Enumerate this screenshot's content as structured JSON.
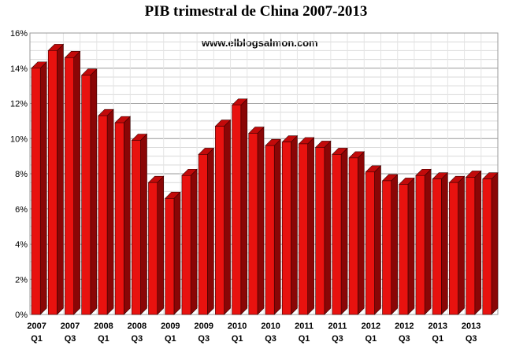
{
  "chart_data": {
    "type": "bar",
    "title": "PIB trimestral de China 2007-2013",
    "annotation": "www.elblogsalmon.com",
    "xlabel": "",
    "ylabel": "",
    "ylim": [
      0,
      16
    ],
    "yticks": [
      "0%",
      "2%",
      "4%",
      "6%",
      "8%",
      "10%",
      "12%",
      "14%",
      "16%"
    ],
    "grid": true,
    "legend": "none",
    "bar_color": "#e8120f",
    "bar_side_color": "#8a0606",
    "categories": [
      "2007 Q1",
      "2007 Q2",
      "2007 Q3",
      "2007 Q4",
      "2008 Q1",
      "2008 Q2",
      "2008 Q3",
      "2008 Q4",
      "2009 Q1",
      "2009 Q2",
      "2009 Q3",
      "2009 Q4",
      "2010 Q1",
      "2010 Q2",
      "2010 Q3",
      "2010 Q4",
      "2011 Q1",
      "2011 Q2",
      "2011 Q3",
      "2011 Q4",
      "2012 Q1",
      "2012 Q2",
      "2012 Q3",
      "2012 Q4",
      "2013 Q1",
      "2013 Q2",
      "2013 Q3",
      "2013 Q4"
    ],
    "x_tick_labels": [
      {
        "year": "2007",
        "quarter": "Q1",
        "index": 0
      },
      {
        "year": "2007",
        "quarter": "Q3",
        "index": 2
      },
      {
        "year": "2008",
        "quarter": "Q1",
        "index": 4
      },
      {
        "year": "2008",
        "quarter": "Q3",
        "index": 6
      },
      {
        "year": "2009",
        "quarter": "Q1",
        "index": 8
      },
      {
        "year": "2009",
        "quarter": "Q3",
        "index": 10
      },
      {
        "year": "2010",
        "quarter": "Q1",
        "index": 12
      },
      {
        "year": "2010",
        "quarter": "Q3",
        "index": 14
      },
      {
        "year": "2011",
        "quarter": "Q1",
        "index": 16
      },
      {
        "year": "2011",
        "quarter": "Q3",
        "index": 18
      },
      {
        "year": "2012",
        "quarter": "Q1",
        "index": 20
      },
      {
        "year": "2012",
        "quarter": "Q3",
        "index": 22
      },
      {
        "year": "2013",
        "quarter": "Q1",
        "index": 24
      },
      {
        "year": "2013",
        "quarter": "Q3",
        "index": 26
      }
    ],
    "values": [
      14.0,
      15.0,
      14.6,
      13.6,
      11.3,
      10.9,
      9.9,
      7.5,
      6.6,
      7.9,
      9.1,
      10.7,
      11.9,
      10.3,
      9.6,
      9.8,
      9.7,
      9.5,
      9.1,
      8.9,
      8.1,
      7.6,
      7.4,
      7.9,
      7.7,
      7.5,
      7.8,
      7.7
    ]
  }
}
